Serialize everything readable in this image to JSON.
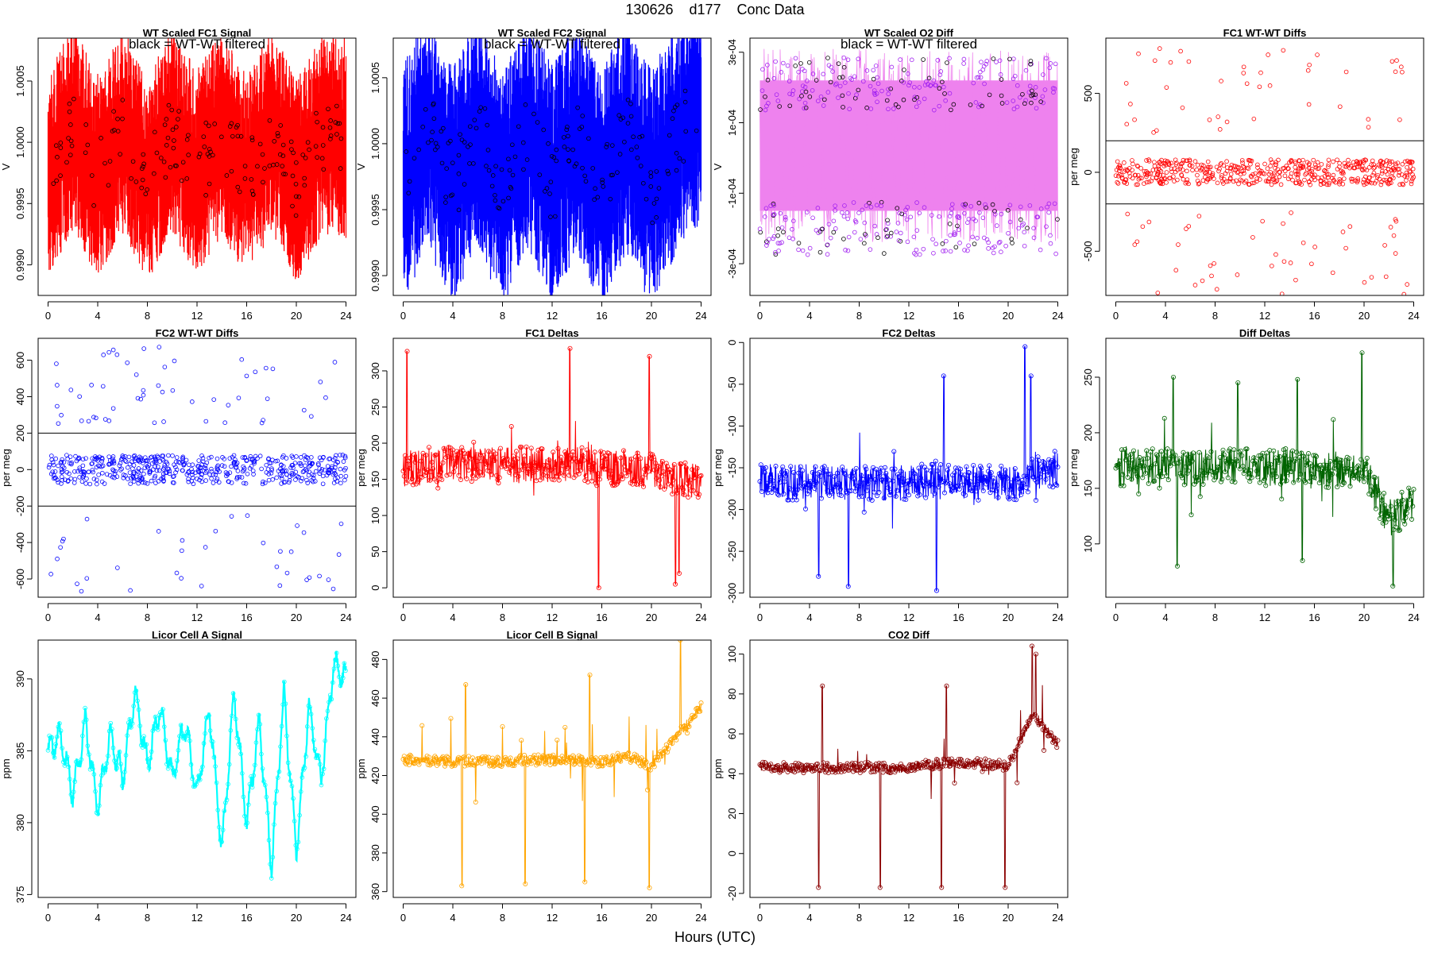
{
  "figure": {
    "title": "130626    d177    Conc Data",
    "xlabel": "Hours (UTC)"
  },
  "chart_data": [
    {
      "id": "wt-fc1-signal",
      "type": "line",
      "title": "WT Scaled FC1 Signal",
      "note": "black = WT-WT filtered",
      "ylabel": "V",
      "color": "#ff0000",
      "marker_color": "#000000",
      "xlim": [
        -0.8,
        24.8
      ],
      "ylim": [
        0.99875,
        1.00085
      ],
      "xticks": [
        0,
        4,
        8,
        12,
        16,
        20,
        24
      ],
      "yticks": [
        0.999,
        0.9995,
        1.0,
        1.0005
      ],
      "ytick_labels": [
        "0.9990",
        "0.9995",
        "1.0000",
        "1.0005"
      ],
      "band": {
        "low": 0.9996,
        "high": 1.0003
      },
      "x": [
        0,
        2,
        4,
        6,
        8,
        10,
        12,
        14,
        16,
        18,
        20,
        22,
        24
      ],
      "y": [
        0.99975,
        1.00012,
        0.99972,
        1.0001,
        0.99968,
        1.0001,
        0.99975,
        1.00008,
        0.9997,
        1.0001,
        0.99968,
        1.00005,
        1.00005
      ],
      "style": "dense-noise"
    },
    {
      "id": "wt-fc2-signal",
      "type": "line",
      "title": "WT Scaled FC2 Signal",
      "note": "black = WT-WT filtered",
      "ylabel": "V",
      "color": "#0000ff",
      "marker_color": "#000000",
      "xlim": [
        -0.8,
        24.8
      ],
      "ylim": [
        0.99885,
        1.0008
      ],
      "xticks": [
        0,
        4,
        8,
        12,
        16,
        20,
        24
      ],
      "yticks": [
        0.999,
        0.9995,
        1.0,
        1.0005
      ],
      "ytick_labels": [
        "0.9990",
        "0.9995",
        "1.0000",
        "1.0005"
      ],
      "band": {
        "low": 0.99955,
        "high": 1.0003
      },
      "x": [
        0,
        2,
        4,
        6,
        8,
        10,
        12,
        14,
        16,
        18,
        20,
        22,
        24
      ],
      "y": [
        0.9997,
        1.0001,
        0.99968,
        1.0001,
        0.99965,
        1.0001,
        0.9997,
        1.00008,
        0.99965,
        1.00008,
        0.99965,
        1.00005,
        1.0003
      ],
      "style": "dense-noise"
    },
    {
      "id": "wt-o2-diff",
      "type": "line",
      "title": "WT Scaled O2 Diff",
      "note": "black = WT-WT filtered",
      "ylabel": "V",
      "color": "#ee82ee",
      "marker_color": "#a020f0",
      "xlim": [
        -0.8,
        24.8
      ],
      "ylim": [
        -0.00039,
        0.00034
      ],
      "xticks": [
        0,
        4,
        8,
        12,
        16,
        20,
        24
      ],
      "yticks": [
        -0.0003,
        -0.0001,
        0.0001,
        0.0003
      ],
      "ytick_labels": [
        "-3e-04",
        "-1e-04",
        "1e-04",
        "3e-04"
      ],
      "band": {
        "low": -0.00015,
        "high": 0.00022
      },
      "x": [
        0,
        2,
        4,
        6,
        8,
        10,
        12,
        14,
        16,
        18,
        20,
        22,
        24
      ],
      "y": [
        0.00022,
        -0.0002,
        0.00024,
        -0.00018,
        0.00025,
        -0.0002,
        0.00022,
        -0.00024,
        0.0002,
        -0.00022,
        0.00018,
        -0.00026,
        0.00022
      ],
      "style": "bimodal"
    },
    {
      "id": "fc1-wt-wt-diffs",
      "type": "scatter",
      "title": "FC1 WT-WT Diffs",
      "ylabel": "per meg",
      "color": "#ff0000",
      "xlim": [
        -0.8,
        24.8
      ],
      "ylim": [
        -780,
        850
      ],
      "xticks": [
        0,
        4,
        8,
        12,
        16,
        20,
        24
      ],
      "yticks": [
        -500,
        0,
        500
      ],
      "ytick_labels": [
        "-500",
        "0",
        "500"
      ],
      "hlines": [
        200,
        -200
      ],
      "core_range": [
        -80,
        80
      ],
      "outlier_range": [
        250,
        800
      ]
    },
    {
      "id": "fc2-wt-wt-diffs",
      "type": "scatter",
      "title": "FC2 WT-WT Diffs",
      "ylabel": "per meg",
      "color": "#0000ff",
      "xlim": [
        -0.8,
        24.8
      ],
      "ylim": [
        -700,
        720
      ],
      "xticks": [
        0,
        4,
        8,
        12,
        16,
        20,
        24
      ],
      "yticks": [
        -600,
        -400,
        -200,
        0,
        200,
        400,
        600
      ],
      "ytick_labels": [
        "-600",
        "-400",
        "-200",
        "0",
        "200",
        "400",
        "600"
      ],
      "hlines": [
        200,
        -200
      ],
      "core_range": [
        -80,
        80
      ],
      "outlier_range": [
        250,
        680
      ]
    },
    {
      "id": "fc1-deltas",
      "type": "line",
      "title": "FC1 Deltas",
      "ylabel": "per meg",
      "color": "#ff0000",
      "xlim": [
        -0.8,
        24.8
      ],
      "ylim": [
        -13,
        345
      ],
      "xticks": [
        0,
        4,
        8,
        12,
        16,
        20,
        24
      ],
      "yticks": [
        0,
        50,
        100,
        150,
        200,
        250,
        300
      ],
      "ytick_labels": [
        "0",
        "50",
        "100",
        "150",
        "200",
        "250",
        "300"
      ],
      "x": [
        0,
        2,
        4,
        6,
        8,
        10,
        12,
        14,
        16,
        18,
        20,
        22,
        24
      ],
      "y": [
        165,
        170,
        175,
        168,
        170,
        172,
        168,
        170,
        165,
        168,
        160,
        150,
        150
      ],
      "spikes": [
        [
          0.3,
          327
        ],
        [
          13.4,
          331
        ],
        [
          19.8,
          320
        ],
        [
          15.7,
          0
        ],
        [
          21.9,
          5
        ],
        [
          22.2,
          20
        ]
      ],
      "style": "noisy-line"
    },
    {
      "id": "fc2-deltas",
      "type": "line",
      "title": "FC2 Deltas",
      "ylabel": "per meg",
      "color": "#0000ff",
      "xlim": [
        -0.8,
        24.8
      ],
      "ylim": [
        -305,
        5
      ],
      "xticks": [
        0,
        4,
        8,
        12,
        16,
        20,
        24
      ],
      "yticks": [
        -300,
        -250,
        -200,
        -150,
        -100,
        -50,
        0
      ],
      "ytick_labels": [
        "-300",
        "-250",
        "-200",
        "-150",
        "-100",
        "-50",
        "0"
      ],
      "x": [
        0,
        2,
        4,
        6,
        8,
        10,
        12,
        14,
        16,
        18,
        20,
        22,
        24
      ],
      "y": [
        -165,
        -168,
        -165,
        -170,
        -165,
        -170,
        -168,
        -165,
        -170,
        -168,
        -170,
        -160,
        -150
      ],
      "spikes": [
        [
          14.8,
          -40
        ],
        [
          21.3,
          -5
        ],
        [
          14.2,
          -297
        ],
        [
          7.1,
          -292
        ],
        [
          4.7,
          -280
        ],
        [
          21.8,
          -40
        ]
      ],
      "style": "noisy-line"
    },
    {
      "id": "diff-deltas",
      "type": "line",
      "title": "Diff Deltas",
      "ylabel": "per meg",
      "color": "#006400",
      "xlim": [
        -0.8,
        24.8
      ],
      "ylim": [
        52,
        285
      ],
      "xticks": [
        0,
        4,
        8,
        12,
        16,
        20,
        24
      ],
      "yticks": [
        100,
        150,
        200,
        250
      ],
      "ytick_labels": [
        "100",
        "150",
        "200",
        "250"
      ],
      "x": [
        0,
        2,
        4,
        6,
        8,
        10,
        12,
        14,
        16,
        18,
        20,
        22,
        24
      ],
      "y": [
        168,
        170,
        170,
        168,
        170,
        170,
        168,
        170,
        165,
        168,
        168,
        120,
        140
      ],
      "spikes": [
        [
          4.6,
          250
        ],
        [
          4.9,
          80
        ],
        [
          9.8,
          245
        ],
        [
          14.6,
          248
        ],
        [
          15.0,
          85
        ],
        [
          19.8,
          272
        ],
        [
          22.3,
          62
        ]
      ],
      "style": "noisy-line"
    },
    {
      "id": "licor-cell-a",
      "type": "line",
      "title": "Licor Cell A Signal",
      "ylabel": "ppm",
      "color": "#00ffff",
      "xlim": [
        -0.8,
        24.8
      ],
      "ylim": [
        374.8,
        392.7
      ],
      "xticks": [
        0,
        4,
        8,
        12,
        16,
        20,
        24
      ],
      "yticks": [
        375,
        380,
        385,
        390
      ],
      "ytick_labels": [
        "375",
        "380",
        "385",
        "390"
      ],
      "x": [
        0,
        1,
        2,
        3,
        4,
        5,
        6,
        7,
        8,
        9,
        10,
        11,
        12,
        13,
        14,
        15,
        16,
        17,
        18,
        19,
        20,
        21,
        22,
        23,
        24
      ],
      "y": [
        385,
        386,
        382,
        387,
        381,
        386,
        383,
        389,
        384,
        388,
        383,
        387,
        382,
        388,
        378,
        389,
        380,
        387,
        377,
        389,
        378,
        388,
        383,
        391,
        390
      ],
      "style": "oscillating"
    },
    {
      "id": "licor-cell-b",
      "type": "line",
      "title": "Licor Cell B Signal",
      "ylabel": "ppm",
      "color": "#ffa500",
      "xlim": [
        -0.8,
        24.8
      ],
      "ylim": [
        357,
        490
      ],
      "xticks": [
        0,
        4,
        8,
        12,
        16,
        20,
        24
      ],
      "yticks": [
        360,
        380,
        400,
        420,
        440,
        460,
        480
      ],
      "ytick_labels": [
        "360",
        "380",
        "400",
        "420",
        "440",
        "460",
        "480"
      ],
      "x": [
        0,
        2,
        4,
        6,
        8,
        10,
        12,
        14,
        16,
        18,
        20,
        22,
        24
      ],
      "y": [
        428,
        428,
        427,
        428,
        427,
        428,
        428,
        428,
        427,
        430,
        425,
        440,
        455
      ],
      "spikes": [
        [
          4.7,
          363
        ],
        [
          5.0,
          467
        ],
        [
          9.8,
          364
        ],
        [
          14.6,
          365
        ],
        [
          15.0,
          472
        ],
        [
          19.8,
          362
        ],
        [
          22.3,
          490
        ]
      ],
      "style": "noisy-line"
    },
    {
      "id": "co2-diff",
      "type": "line",
      "title": "CO2 Diff",
      "ylabel": "ppm",
      "color": "#8b0000",
      "xlim": [
        -0.8,
        24.8
      ],
      "ylim": [
        -22,
        107
      ],
      "xticks": [
        0,
        4,
        8,
        12,
        16,
        20,
        24
      ],
      "yticks": [
        -20,
        0,
        20,
        40,
        60,
        80,
        100
      ],
      "ytick_labels": [
        "-20",
        "0",
        "20",
        "40",
        "60",
        "80",
        "100"
      ],
      "x": [
        0,
        2,
        4,
        6,
        8,
        10,
        12,
        14,
        16,
        18,
        20,
        22,
        24
      ],
      "y": [
        44,
        43,
        43,
        43,
        43,
        43,
        43,
        45,
        45,
        45,
        44,
        70,
        55
      ],
      "spikes": [
        [
          4.7,
          -17
        ],
        [
          5.0,
          84
        ],
        [
          9.7,
          -17
        ],
        [
          14.6,
          -17
        ],
        [
          15.0,
          84
        ],
        [
          19.7,
          -17
        ],
        [
          21.9,
          104
        ],
        [
          22.2,
          100
        ]
      ],
      "style": "noisy-line"
    }
  ]
}
